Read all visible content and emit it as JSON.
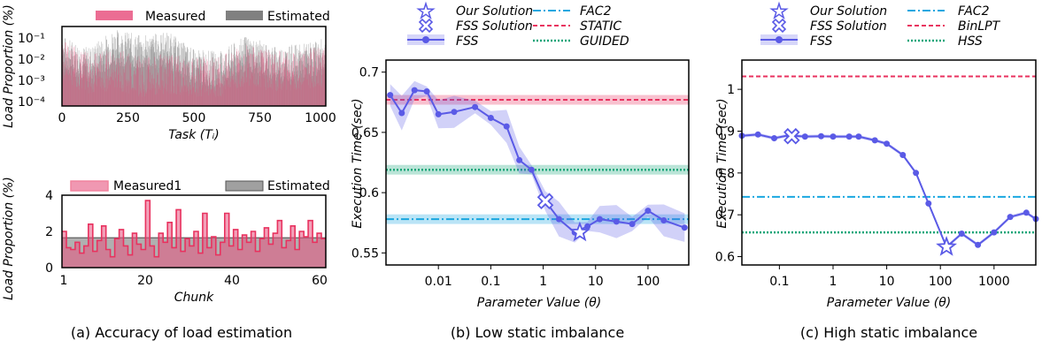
{
  "colors": {
    "measured": "#e75480",
    "estimated": "#808080",
    "fss": "#5a5ae6",
    "fac2": "#1aa7e0",
    "static": "#e8325f",
    "guided": "#1aa67a"
  },
  "captions": {
    "a": "(a) Accuracy of load estimation",
    "b": "(b) Low static imbalance",
    "c": "(c) High static imbalance"
  },
  "chart_data": [
    {
      "id": "a-top",
      "type": "area",
      "xlabel": "Task (Tᵢ)",
      "ylabel": "Load Proportion (%)",
      "xlim": [
        0,
        1000
      ],
      "ylim": [
        0.0001,
        0.3
      ],
      "yscale": "log",
      "x_ticks": [
        "0",
        "250",
        "500",
        "750",
        "1000"
      ],
      "y_ticks": [
        "10⁻⁴",
        "10⁻³",
        "10⁻²",
        "10⁻¹"
      ],
      "legend": [
        "Measured",
        "Estimated"
      ],
      "series": [
        {
          "name": "Measured",
          "x": [
            0,
            100,
            200,
            300,
            400,
            500,
            600,
            700,
            800,
            900,
            1000
          ],
          "values": [
            0.015,
            0.004,
            0.006,
            0.003,
            0.004,
            0.003,
            0.003,
            0.01,
            0.005,
            0.006,
            0.008
          ]
        },
        {
          "name": "Estimated",
          "x": [
            0,
            100,
            200,
            300,
            400,
            500,
            600,
            700,
            800,
            900,
            1000
          ],
          "values": [
            0.02,
            0.006,
            0.04,
            0.02,
            0.03,
            0.005,
            0.004,
            0.02,
            0.007,
            0.008,
            0.015
          ]
        }
      ]
    },
    {
      "id": "a-bottom",
      "type": "area",
      "xlabel": "Chunk",
      "ylabel": "Load Proportion (%)",
      "xlim": [
        1,
        61
      ],
      "ylim": [
        0,
        4
      ],
      "x_ticks": [
        "1",
        "20",
        "40",
        "60"
      ],
      "y_ticks": [
        "0",
        "2",
        "4"
      ],
      "legend": [
        "Measured1",
        "Estimated"
      ],
      "series": [
        {
          "name": "Measured1",
          "x": [
            1,
            2,
            3,
            4,
            5,
            6,
            7,
            8,
            9,
            10,
            11,
            12,
            13,
            14,
            15,
            16,
            17,
            18,
            19,
            20,
            21,
            22,
            23,
            24,
            25,
            26,
            27,
            28,
            29,
            30,
            31,
            32,
            33,
            34,
            35,
            36,
            37,
            38,
            39,
            40,
            41,
            42,
            43,
            44,
            45,
            46,
            47,
            48,
            49,
            50,
            51,
            52,
            53,
            54,
            55,
            56,
            57,
            58,
            59,
            60
          ],
          "values": [
            2.0,
            1.1,
            1.0,
            1.4,
            0.8,
            1.2,
            2.4,
            0.9,
            1.5,
            2.3,
            1.0,
            0.6,
            1.6,
            2.1,
            1.2,
            0.7,
            1.9,
            1.3,
            1.0,
            3.7,
            1.2,
            0.6,
            1.9,
            1.4,
            2.5,
            1.1,
            3.2,
            0.9,
            1.6,
            1.2,
            2.0,
            0.8,
            3.0,
            1.1,
            1.7,
            0.7,
            1.4,
            3.0,
            1.2,
            2.1,
            1.0,
            1.8,
            1.4,
            2.0,
            0.9,
            1.6,
            2.2,
            1.3,
            1.9,
            2.6,
            1.1,
            1.5,
            2.3,
            1.0,
            2.0,
            1.7,
            2.6,
            1.4,
            1.9,
            1.6
          ]
        },
        {
          "name": "Estimated",
          "x": [
            1,
            61
          ],
          "values": [
            1.65,
            1.65
          ]
        }
      ]
    },
    {
      "id": "b",
      "type": "line",
      "xlabel": "Parameter Value (θ)",
      "ylabel": "Execution Time (sec)",
      "xscale": "log",
      "xlim": [
        0.001,
        600
      ],
      "ylim": [
        0.54,
        0.71
      ],
      "x_ticks": [
        "0.01",
        "0.1",
        "1",
        "10",
        "100"
      ],
      "y_ticks": [
        "0.55",
        "0.6",
        "0.65",
        "0.7"
      ],
      "legend": [
        "Our Solution",
        "FSS Solution",
        "FSS",
        "FAC2",
        "STATIC",
        "GUIDED"
      ],
      "series": [
        {
          "name": "FSS",
          "x": [
            0.0012,
            0.002,
            0.0035,
            0.006,
            0.01,
            0.02,
            0.05,
            0.1,
            0.2,
            0.35,
            0.6,
            1.1,
            2,
            4,
            7,
            12,
            25,
            50,
            100,
            200,
            500
          ],
          "values": [
            0.681,
            0.666,
            0.685,
            0.684,
            0.665,
            0.667,
            0.671,
            0.662,
            0.655,
            0.627,
            0.619,
            0.593,
            0.578,
            0.567,
            0.572,
            0.578,
            0.576,
            0.574,
            0.585,
            0.577,
            0.571
          ]
        },
        {
          "name": "FAC2",
          "value": 0.578
        },
        {
          "name": "STATIC",
          "value": 0.677
        },
        {
          "name": "GUIDED",
          "value": 0.619
        }
      ],
      "markers": {
        "our_solution": {
          "x": 5,
          "y": 0.567
        },
        "fss_solution": {
          "x": 1.1,
          "y": 0.593
        }
      }
    },
    {
      "id": "c",
      "type": "line",
      "xlabel": "Parameter Value (θ)",
      "ylabel": "Execution Time (sec)",
      "xscale": "log",
      "xlim": [
        0.02,
        6000
      ],
      "ylim": [
        0.58,
        1.07
      ],
      "x_ticks": [
        "0.1",
        "1",
        "10",
        "100",
        "1000"
      ],
      "y_ticks": [
        "0.6",
        "0.7",
        "0.8",
        "0.9",
        "1"
      ],
      "legend": [
        "Our Solution",
        "FSS Solution",
        "FSS",
        "FAC2",
        "BinLPT",
        "HSS"
      ],
      "series": [
        {
          "name": "FSS",
          "x": [
            0.02,
            0.04,
            0.08,
            0.15,
            0.3,
            0.6,
            1,
            2,
            3,
            6,
            10,
            20,
            35,
            60,
            130,
            250,
            500,
            1000,
            2000,
            4000,
            6000
          ],
          "values": [
            0.889,
            0.892,
            0.883,
            0.89,
            0.887,
            0.888,
            0.887,
            0.887,
            0.887,
            0.878,
            0.87,
            0.843,
            0.8,
            0.727,
            0.623,
            0.655,
            0.628,
            0.658,
            0.695,
            0.705,
            0.69
          ]
        },
        {
          "name": "FAC2",
          "value": 0.743
        },
        {
          "name": "BinLPT",
          "value": 1.031
        },
        {
          "name": "HSS",
          "value": 0.658
        }
      ],
      "markers": {
        "our_solution": {
          "x": 130,
          "y": 0.623
        },
        "fss_solution": {
          "x": 0.17,
          "y": 0.888
        }
      }
    }
  ]
}
